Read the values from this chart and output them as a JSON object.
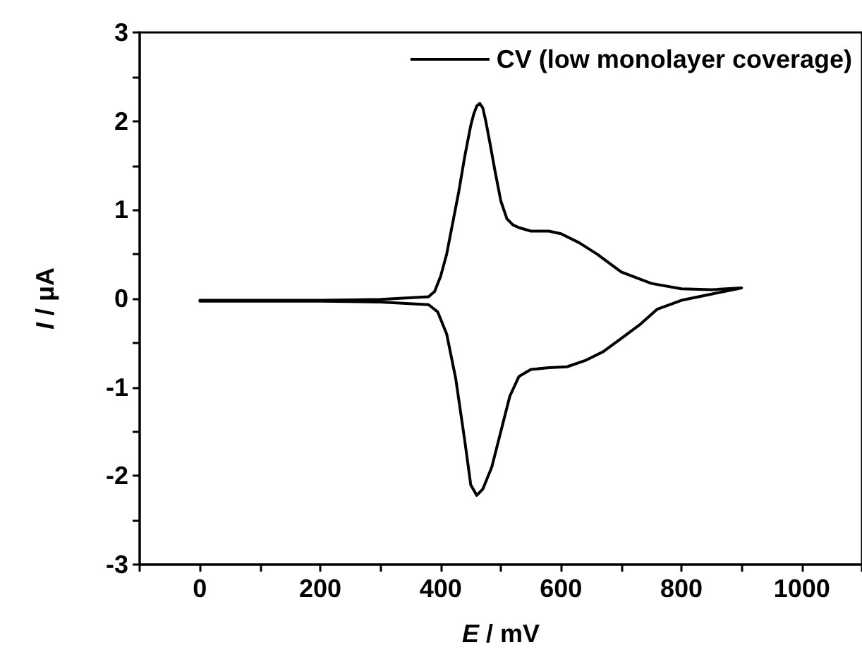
{
  "chart_data": {
    "type": "line",
    "xlabel": "E / mV",
    "ylabel": "I / μA",
    "xlim": [
      -100,
      1100
    ],
    "xticks": [
      {
        "value": -100,
        "label": null
      },
      0,
      {
        "value": 100,
        "label": null
      },
      200,
      {
        "value": 300,
        "label": null
      },
      400,
      {
        "value": 500,
        "label": null
      },
      600,
      {
        "value": 700,
        "label": null
      },
      800,
      {
        "value": 900,
        "label": null
      },
      1000,
      {
        "value": 1100,
        "label": null
      }
    ],
    "ylim": [
      -3,
      3
    ],
    "yticks": [
      -3,
      {
        "value": -2.5,
        "label": null
      },
      -2,
      {
        "value": -1.5,
        "label": null
      },
      -1,
      {
        "value": -0.5,
        "label": null
      },
      0,
      {
        "value": 0.5,
        "label": null
      },
      1,
      {
        "value": 1.5,
        "label": null
      },
      2,
      {
        "value": 2.5,
        "label": null
      },
      3
    ],
    "grid": false,
    "legend": "top right",
    "marker": "none",
    "line_style": "solid",
    "series": [
      {
        "name": "CV (low monolayer coverage)",
        "color": "#000000",
        "x": [
          0,
          100,
          200,
          300,
          380,
          390,
          400,
          410,
          420,
          430,
          440,
          450,
          455,
          460,
          465,
          470,
          475,
          482,
          490,
          500,
          510,
          520,
          530,
          550,
          580,
          600,
          630,
          660,
          700,
          750,
          800,
          850,
          900,
          850,
          800,
          760,
          730,
          700,
          670,
          640,
          610,
          580,
          550,
          530,
          515,
          500,
          485,
          470,
          460,
          450,
          440,
          425,
          410,
          395,
          380,
          300,
          200,
          100,
          0
        ],
        "values": [
          -0.02,
          -0.02,
          -0.02,
          -0.01,
          0.02,
          0.08,
          0.25,
          0.5,
          0.85,
          1.2,
          1.6,
          1.95,
          2.08,
          2.17,
          2.2,
          2.15,
          2.0,
          1.75,
          1.45,
          1.1,
          0.9,
          0.83,
          0.8,
          0.76,
          0.76,
          0.73,
          0.63,
          0.5,
          0.3,
          0.17,
          0.11,
          0.1,
          0.12,
          0.05,
          -0.02,
          -0.12,
          -0.3,
          -0.45,
          -0.6,
          -0.7,
          -0.77,
          -0.78,
          -0.8,
          -0.88,
          -1.1,
          -1.5,
          -1.9,
          -2.15,
          -2.22,
          -2.1,
          -1.6,
          -0.9,
          -0.4,
          -0.15,
          -0.07,
          -0.04,
          -0.03,
          -0.03,
          -0.03
        ]
      }
    ]
  }
}
